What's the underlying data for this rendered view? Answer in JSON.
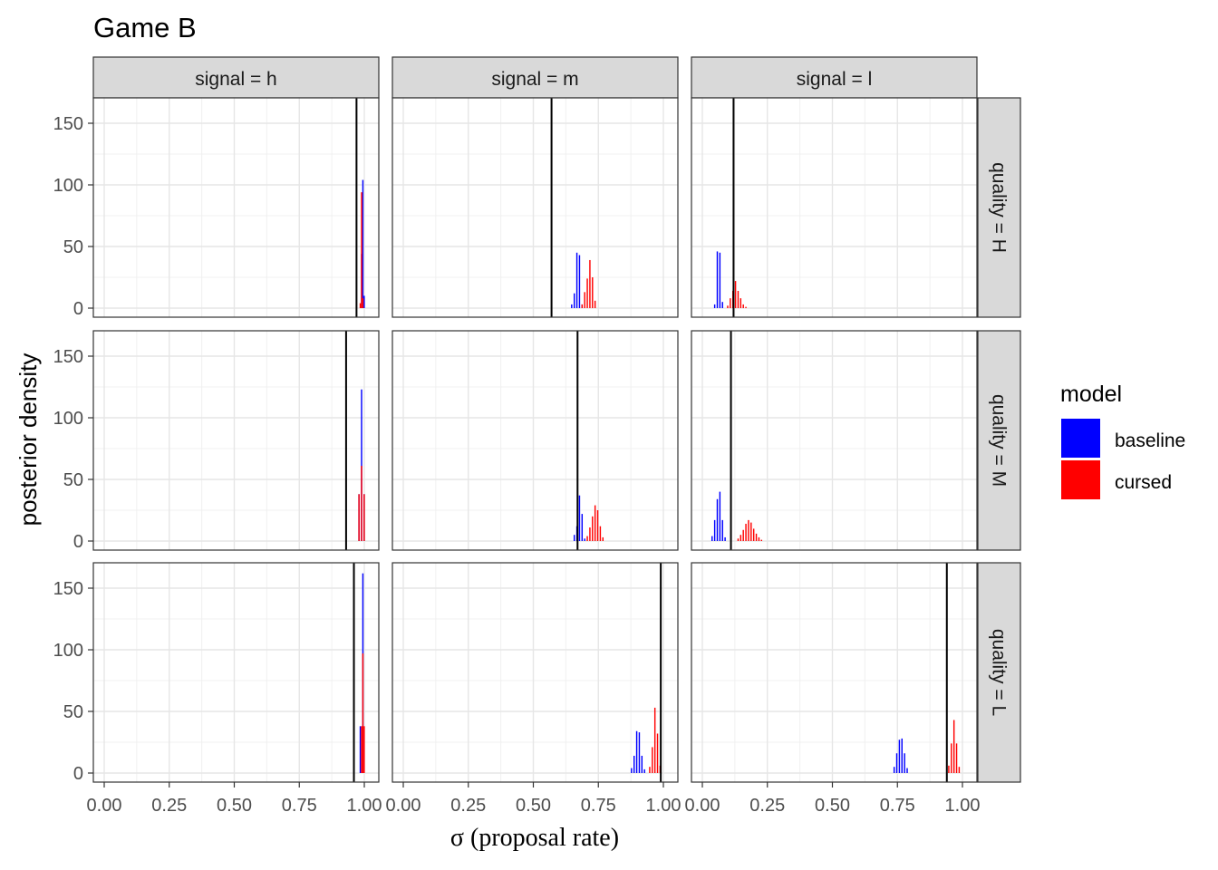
{
  "chart_data": {
    "type": "bar",
    "title": "Game B",
    "xlabel": "σ (proposal rate)",
    "ylabel": "posterior density",
    "xlim": [
      0,
      1
    ],
    "ylim": [
      0,
      170
    ],
    "x_ticks": [
      0,
      0.25,
      0.5,
      0.75,
      1
    ],
    "x_tick_labels": [
      "0.00",
      "0.25",
      "0.50",
      "0.75",
      "1.00"
    ],
    "y_ticks": [
      0,
      50,
      100,
      150
    ],
    "y_tick_labels": [
      "0",
      "50",
      "100",
      "150"
    ],
    "grid": true,
    "col_labels": [
      "signal = h",
      "signal = m",
      "signal = l"
    ],
    "row_labels": [
      "quality = H",
      "quality = M",
      "quality = L"
    ],
    "legend": {
      "title": "model",
      "position": "right",
      "entries": [
        {
          "label": "baseline",
          "color": "#0000ff"
        },
        {
          "label": "cursed",
          "color": "#ff0000"
        }
      ]
    },
    "panels": [
      {
        "row": 0,
        "col": 0,
        "vline": 0.97,
        "series": [
          {
            "name": "baseline",
            "color": "#0000ff",
            "bins": [
              [
                0.987,
                44
              ],
              [
                0.992,
                104
              ],
              [
                0.997,
                10
              ]
            ]
          },
          {
            "name": "cursed",
            "color": "#ff0000",
            "bins": [
              [
                0.982,
                4
              ],
              [
                0.987,
                94
              ],
              [
                0.992,
                8
              ]
            ]
          }
        ]
      },
      {
        "row": 0,
        "col": 1,
        "vline": 0.57,
        "series": [
          {
            "name": "baseline",
            "color": "#0000ff",
            "bins": [
              [
                0.645,
                3
              ],
              [
                0.655,
                12
              ],
              [
                0.665,
                45
              ],
              [
                0.675,
                43
              ],
              [
                0.685,
                3
              ]
            ]
          },
          {
            "name": "cursed",
            "color": "#ff0000",
            "bins": [
              [
                0.685,
                3
              ],
              [
                0.695,
                13
              ],
              [
                0.705,
                24
              ],
              [
                0.715,
                39
              ],
              [
                0.725,
                25
              ],
              [
                0.735,
                6
              ]
            ]
          }
        ]
      },
      {
        "row": 0,
        "col": 2,
        "vline": 0.12,
        "series": [
          {
            "name": "baseline",
            "color": "#0000ff",
            "bins": [
              [
                0.045,
                3
              ],
              [
                0.055,
                46
              ],
              [
                0.065,
                45
              ],
              [
                0.075,
                5
              ]
            ]
          },
          {
            "name": "cursed",
            "color": "#ff0000",
            "bins": [
              [
                0.095,
                2
              ],
              [
                0.105,
                8
              ],
              [
                0.115,
                14
              ],
              [
                0.125,
                22
              ],
              [
                0.135,
                14
              ],
              [
                0.145,
                8
              ],
              [
                0.155,
                3
              ],
              [
                0.165,
                1
              ]
            ]
          }
        ]
      },
      {
        "row": 1,
        "col": 0,
        "vline": 0.93,
        "series": [
          {
            "name": "baseline",
            "color": "#0000ff",
            "bins": [
              [
                0.977,
                38
              ],
              [
                0.987,
                123
              ],
              [
                0.997,
                38
              ]
            ]
          },
          {
            "name": "cursed",
            "color": "#ff0000",
            "bins": [
              [
                0.977,
                38
              ],
              [
                0.987,
                61
              ],
              [
                0.997,
                38
              ]
            ]
          }
        ]
      },
      {
        "row": 1,
        "col": 1,
        "vline": 0.67,
        "series": [
          {
            "name": "baseline",
            "color": "#0000ff",
            "bins": [
              [
                0.655,
                5
              ],
              [
                0.665,
                12
              ],
              [
                0.675,
                37
              ],
              [
                0.685,
                22
              ],
              [
                0.695,
                2
              ]
            ]
          },
          {
            "name": "cursed",
            "color": "#ff0000",
            "bins": [
              [
                0.705,
                4
              ],
              [
                0.715,
                11
              ],
              [
                0.725,
                20
              ],
              [
                0.735,
                29
              ],
              [
                0.745,
                25
              ],
              [
                0.755,
                12
              ],
              [
                0.765,
                3
              ]
            ]
          }
        ]
      },
      {
        "row": 1,
        "col": 2,
        "vline": 0.11,
        "series": [
          {
            "name": "baseline",
            "color": "#0000ff",
            "bins": [
              [
                0.035,
                4
              ],
              [
                0.045,
                17
              ],
              [
                0.055,
                34
              ],
              [
                0.065,
                40
              ],
              [
                0.075,
                17
              ],
              [
                0.085,
                3
              ]
            ]
          },
          {
            "name": "cursed",
            "color": "#ff0000",
            "bins": [
              [
                0.135,
                2
              ],
              [
                0.145,
                5
              ],
              [
                0.155,
                9
              ],
              [
                0.165,
                14
              ],
              [
                0.175,
                17
              ],
              [
                0.185,
                15
              ],
              [
                0.195,
                10
              ],
              [
                0.205,
                6
              ],
              [
                0.215,
                3
              ],
              [
                0.225,
                1
              ]
            ]
          }
        ]
      },
      {
        "row": 2,
        "col": 0,
        "vline": 0.96,
        "series": [
          {
            "name": "baseline",
            "color": "#0000ff",
            "bins": [
              [
                0.982,
                38
              ],
              [
                0.992,
                162
              ]
            ]
          },
          {
            "name": "cursed",
            "color": "#ff0000",
            "bins": [
              [
                0.987,
                38
              ],
              [
                0.992,
                97
              ],
              [
                0.997,
                38
              ]
            ]
          }
        ]
      },
      {
        "row": 2,
        "col": 1,
        "vline": 0.99,
        "series": [
          {
            "name": "baseline",
            "color": "#0000ff",
            "bins": [
              [
                0.875,
                4
              ],
              [
                0.885,
                14
              ],
              [
                0.895,
                34
              ],
              [
                0.905,
                33
              ],
              [
                0.915,
                14
              ],
              [
                0.925,
                3
              ]
            ]
          },
          {
            "name": "cursed",
            "color": "#ff0000",
            "bins": [
              [
                0.945,
                5
              ],
              [
                0.955,
                21
              ],
              [
                0.965,
                53
              ],
              [
                0.975,
                32
              ],
              [
                0.985,
                6
              ]
            ]
          }
        ]
      },
      {
        "row": 2,
        "col": 2,
        "vline": 0.94,
        "series": [
          {
            "name": "baseline",
            "color": "#0000ff",
            "bins": [
              [
                0.735,
                5
              ],
              [
                0.745,
                16
              ],
              [
                0.755,
                27
              ],
              [
                0.765,
                28
              ],
              [
                0.775,
                16
              ],
              [
                0.785,
                4
              ]
            ]
          },
          {
            "name": "cursed",
            "color": "#ff0000",
            "bins": [
              [
                0.945,
                6
              ],
              [
                0.955,
                24
              ],
              [
                0.965,
                43
              ],
              [
                0.975,
                24
              ],
              [
                0.985,
                5
              ]
            ]
          }
        ]
      }
    ]
  }
}
